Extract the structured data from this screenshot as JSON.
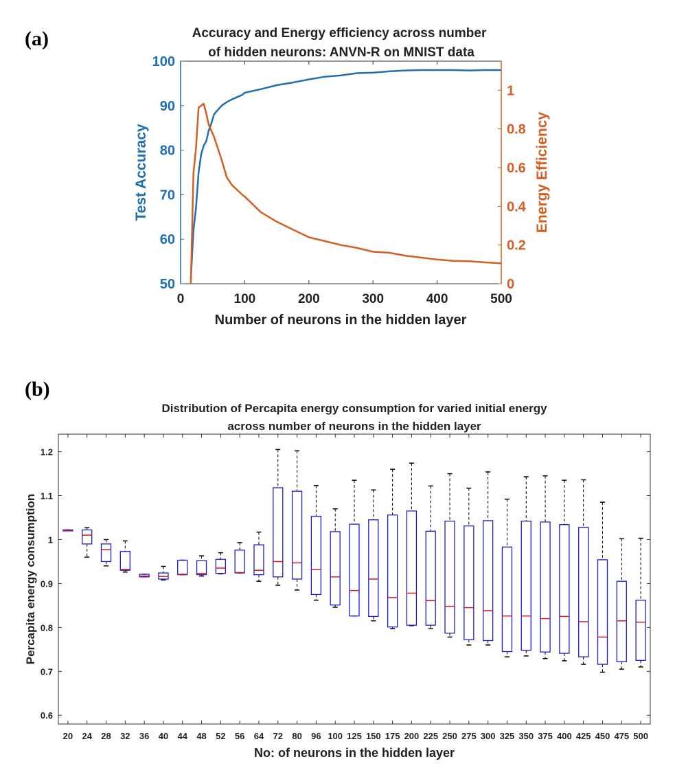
{
  "chart_data": [
    {
      "panel_label": "(a)",
      "type": "line",
      "title_lines": [
        "Accuracy and Energy efficiency across number",
        "of hidden neurons: ANVN-R on MNIST data"
      ],
      "xlabel": "Number of neurons in the hidden layer",
      "xlim": [
        0,
        500
      ],
      "xticks": [
        0,
        100,
        200,
        300,
        400,
        500
      ],
      "left_axis": {
        "label": "Test Accuracy",
        "ylim": [
          50,
          100
        ],
        "ticks": [
          50,
          60,
          70,
          80,
          90,
          100
        ],
        "color": "#1f6fb2"
      },
      "right_axis": {
        "label": "Energy Efficiency",
        "ylim": [
          0,
          1.15
        ],
        "ticks": [
          0,
          0.2,
          0.4,
          0.6,
          0.8,
          1
        ],
        "tick_labels": [
          "0",
          "0.2",
          "0.4",
          "0.6",
          "0.8",
          "1"
        ],
        "color": "#d35f22"
      },
      "series": [
        {
          "axis": "left",
          "color": "#1f6fb2",
          "x": [
            16,
            20,
            24,
            28,
            32,
            36,
            40,
            44,
            48,
            52,
            56,
            64,
            72,
            80,
            96,
            100,
            125,
            150,
            175,
            200,
            225,
            250,
            275,
            300,
            325,
            350,
            375,
            400,
            425,
            450,
            475,
            500
          ],
          "y": [
            51,
            62,
            67,
            75,
            79,
            81,
            82,
            84.5,
            86,
            88,
            88.7,
            90,
            90.8,
            91.4,
            92.4,
            92.9,
            93.7,
            94.6,
            95.2,
            95.9,
            96.5,
            96.8,
            97.3,
            97.4,
            97.7,
            97.9,
            98.0,
            98.0,
            98.0,
            97.9,
            98.0,
            98.0
          ]
        },
        {
          "axis": "right",
          "color": "#d35f22",
          "x": [
            16,
            20,
            24,
            28,
            32,
            36,
            40,
            44,
            48,
            52,
            56,
            64,
            72,
            80,
            96,
            100,
            125,
            150,
            175,
            200,
            225,
            250,
            275,
            300,
            325,
            350,
            375,
            400,
            425,
            450,
            475,
            500
          ],
          "y": [
            0,
            0.57,
            0.7,
            0.91,
            0.92,
            0.93,
            0.88,
            0.82,
            0.79,
            0.76,
            0.72,
            0.64,
            0.55,
            0.51,
            0.46,
            0.45,
            0.37,
            0.32,
            0.28,
            0.24,
            0.22,
            0.2,
            0.185,
            0.165,
            0.16,
            0.145,
            0.135,
            0.125,
            0.118,
            0.116,
            0.11,
            0.105
          ]
        }
      ]
    },
    {
      "panel_label": "(b)",
      "type": "box",
      "title_lines": [
        "Distribution of Percapita energy consumption for varied initial energy",
        "across number of neurons in the hidden layer"
      ],
      "xlabel": "No: of neurons in the hidden layer",
      "ylabel": "Percapita energy consumption",
      "ylim": [
        0.58,
        1.24
      ],
      "yticks": [
        0.6,
        0.7,
        0.8,
        0.9,
        1,
        1.1,
        1.2
      ],
      "ytick_labels": [
        "0.6",
        "0.7",
        "0.8",
        "0.9",
        "1",
        "1.1",
        "1.2"
      ],
      "box_color": "#1a1ad6",
      "median_color": "#d11a1a",
      "categories": [
        "20",
        "24",
        "28",
        "32",
        "36",
        "40",
        "44",
        "48",
        "52",
        "56",
        "64",
        "72",
        "80",
        "96",
        "100",
        "125",
        "150",
        "175",
        "200",
        "225",
        "250",
        "275",
        "300",
        "325",
        "350",
        "375",
        "400",
        "425",
        "450",
        "475",
        "500"
      ],
      "boxes": [
        {
          "min": 1.02,
          "q1": 1.02,
          "median": 1.021,
          "q3": 1.022,
          "max": 1.022
        },
        {
          "min": 0.96,
          "q1": 0.99,
          "median": 1.01,
          "q3": 1.022,
          "max": 1.027
        },
        {
          "min": 0.94,
          "q1": 0.95,
          "median": 0.977,
          "q3": 0.99,
          "max": 1.0
        },
        {
          "min": 0.926,
          "q1": 0.93,
          "median": 0.932,
          "q3": 0.973,
          "max": 0.997
        },
        {
          "min": 0.915,
          "q1": 0.915,
          "median": 0.917,
          "q3": 0.921,
          "max": 0.921
        },
        {
          "min": 0.908,
          "q1": 0.91,
          "median": 0.916,
          "q3": 0.924,
          "max": 0.939
        },
        {
          "min": 0.92,
          "q1": 0.92,
          "median": 0.921,
          "q3": 0.953,
          "max": 0.953
        },
        {
          "min": 0.917,
          "q1": 0.92,
          "median": 0.923,
          "q3": 0.952,
          "max": 0.963
        },
        {
          "min": 0.922,
          "q1": 0.923,
          "median": 0.935,
          "q3": 0.955,
          "max": 0.97
        },
        {
          "min": 0.924,
          "q1": 0.924,
          "median": 0.925,
          "q3": 0.976,
          "max": 0.993
        },
        {
          "min": 0.905,
          "q1": 0.92,
          "median": 0.93,
          "q3": 0.988,
          "max": 1.017
        },
        {
          "min": 0.896,
          "q1": 0.915,
          "median": 0.95,
          "q3": 1.118,
          "max": 1.205
        },
        {
          "min": 0.885,
          "q1": 0.91,
          "median": 0.947,
          "q3": 1.11,
          "max": 1.202
        },
        {
          "min": 0.862,
          "q1": 0.875,
          "median": 0.932,
          "q3": 1.053,
          "max": 1.123
        },
        {
          "min": 0.846,
          "q1": 0.851,
          "median": 0.915,
          "q3": 1.018,
          "max": 1.07
        },
        {
          "min": 0.826,
          "q1": 0.826,
          "median": 0.884,
          "q3": 1.035,
          "max": 1.135
        },
        {
          "min": 0.815,
          "q1": 0.825,
          "median": 0.91,
          "q3": 1.045,
          "max": 1.113
        },
        {
          "min": 0.797,
          "q1": 0.801,
          "median": 0.868,
          "q3": 1.056,
          "max": 1.16
        },
        {
          "min": 0.804,
          "q1": 0.805,
          "median": 0.878,
          "q3": 1.065,
          "max": 1.174
        },
        {
          "min": 0.797,
          "q1": 0.805,
          "median": 0.861,
          "q3": 1.019,
          "max": 1.122
        },
        {
          "min": 0.778,
          "q1": 0.787,
          "median": 0.848,
          "q3": 1.042,
          "max": 1.15
        },
        {
          "min": 0.76,
          "q1": 0.772,
          "median": 0.845,
          "q3": 1.031,
          "max": 1.117
        },
        {
          "min": 0.76,
          "q1": 0.77,
          "median": 0.838,
          "q3": 1.043,
          "max": 1.154
        },
        {
          "min": 0.733,
          "q1": 0.745,
          "median": 0.826,
          "q3": 0.983,
          "max": 1.092
        },
        {
          "min": 0.735,
          "q1": 0.748,
          "median": 0.826,
          "q3": 1.042,
          "max": 1.143
        },
        {
          "min": 0.729,
          "q1": 0.744,
          "median": 0.82,
          "q3": 1.04,
          "max": 1.145
        },
        {
          "min": 0.724,
          "q1": 0.741,
          "median": 0.825,
          "q3": 1.034,
          "max": 1.135
        },
        {
          "min": 0.716,
          "q1": 0.733,
          "median": 0.813,
          "q3": 1.028,
          "max": 1.136
        },
        {
          "min": 0.698,
          "q1": 0.716,
          "median": 0.778,
          "q3": 0.954,
          "max": 1.085
        },
        {
          "min": 0.705,
          "q1": 0.722,
          "median": 0.815,
          "q3": 0.905,
          "max": 1.002
        },
        {
          "min": 0.71,
          "q1": 0.725,
          "median": 0.812,
          "q3": 0.862,
          "max": 1.003
        }
      ]
    }
  ]
}
